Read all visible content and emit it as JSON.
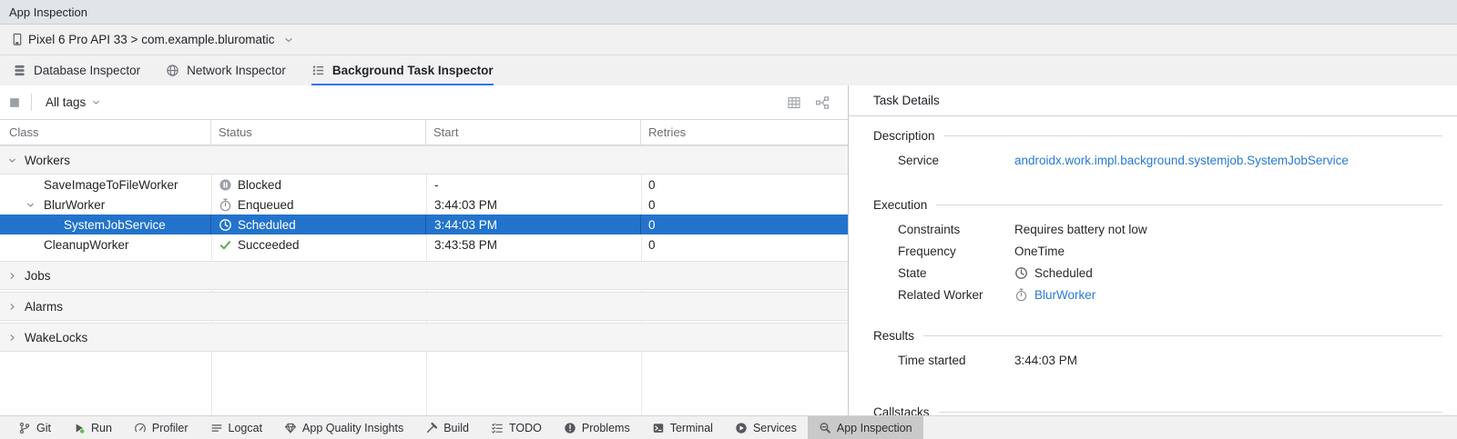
{
  "window": {
    "title": "App Inspection"
  },
  "device_bar": {
    "label": "Pixel 6 Pro API 33 > com.example.bluromatic",
    "icon": "device-phone",
    "chevron": "chevron-down"
  },
  "tabs": [
    {
      "label": "Database Inspector",
      "icon": "database",
      "selected": false
    },
    {
      "label": "Network Inspector",
      "icon": "globe",
      "selected": false
    },
    {
      "label": "Background Task Inspector",
      "icon": "task-list",
      "selected": true
    }
  ],
  "inspector": {
    "toolbar": {
      "stop_button_icon": "stop",
      "filter_label": "All tags",
      "right_buttons": [
        {
          "icon": "table-view",
          "name": "table-view-button"
        },
        {
          "icon": "graph-view",
          "name": "graph-view-button"
        }
      ]
    },
    "table": {
      "columns": [
        "Class",
        "Status",
        "Start",
        "Retries"
      ],
      "groups": [
        {
          "label": "Workers",
          "expanded": true,
          "rows": [
            {
              "class": "SaveImageToFileWorker",
              "status": "Blocked",
              "status_icon": "blocked",
              "start": "-",
              "retries": "0",
              "indent": 1,
              "expandable": false,
              "selected": false
            },
            {
              "class": "BlurWorker",
              "status": "Enqueued",
              "status_icon": "enqueued",
              "start": "3:44:03 PM",
              "retries": "0",
              "indent": 1,
              "expandable": true,
              "selected": false
            },
            {
              "class": "SystemJobService",
              "status": "Scheduled",
              "status_icon": "scheduled",
              "start": "3:44:03 PM",
              "retries": "0",
              "indent": 2,
              "expandable": false,
              "selected": true
            },
            {
              "class": "CleanupWorker",
              "status": "Succeeded",
              "status_icon": "succeeded",
              "start": "3:43:58 PM",
              "retries": "0",
              "indent": 1,
              "expandable": false,
              "selected": false
            }
          ]
        },
        {
          "label": "Jobs",
          "expanded": false,
          "rows": []
        },
        {
          "label": "Alarms",
          "expanded": false,
          "rows": []
        },
        {
          "label": "WakeLocks",
          "expanded": false,
          "rows": []
        }
      ]
    }
  },
  "details": {
    "title": "Task Details",
    "sections": [
      {
        "title": "Description",
        "rows": [
          {
            "label": "Service",
            "value": "androidx.work.impl.background.systemjob.SystemJobService",
            "link": true
          }
        ]
      },
      {
        "title": "Execution",
        "rows": [
          {
            "label": "Constraints",
            "value": "Requires battery not low"
          },
          {
            "label": "Frequency",
            "value": "OneTime"
          },
          {
            "label": "State",
            "value": "Scheduled",
            "icon": "scheduled"
          },
          {
            "label": "Related Worker",
            "value": "BlurWorker",
            "icon": "enqueued",
            "icon_soft": true,
            "link": true
          }
        ]
      },
      {
        "title": "Results",
        "rows": [
          {
            "label": "Time started",
            "value": "3:44:03 PM"
          }
        ]
      },
      {
        "title": "Callstacks",
        "rows": []
      }
    ]
  },
  "bottom_bar": {
    "items": [
      {
        "label": "Git",
        "icon": "git-branch",
        "selected": false
      },
      {
        "label": "Run",
        "icon": "run",
        "selected": false
      },
      {
        "label": "Profiler",
        "icon": "profiler",
        "selected": false
      },
      {
        "label": "Logcat",
        "icon": "logcat",
        "selected": false
      },
      {
        "label": "App Quality Insights",
        "icon": "quality-insights",
        "selected": false
      },
      {
        "label": "Build",
        "icon": "build-hammer",
        "selected": false
      },
      {
        "label": "TODO",
        "icon": "todo-list",
        "selected": false
      },
      {
        "label": "Problems",
        "icon": "problems",
        "selected": false
      },
      {
        "label": "Terminal",
        "icon": "terminal",
        "selected": false
      },
      {
        "label": "Services",
        "icon": "services",
        "selected": false
      },
      {
        "label": "App Inspection",
        "icon": "app-inspection",
        "selected": true
      }
    ]
  },
  "colors": {
    "selection_blue": "#2373cc",
    "link_blue": "#2878d8",
    "tab_underline_blue": "#3574f0",
    "success_green": "#57a64a",
    "status_icon_gray": "#9aa0a6"
  }
}
